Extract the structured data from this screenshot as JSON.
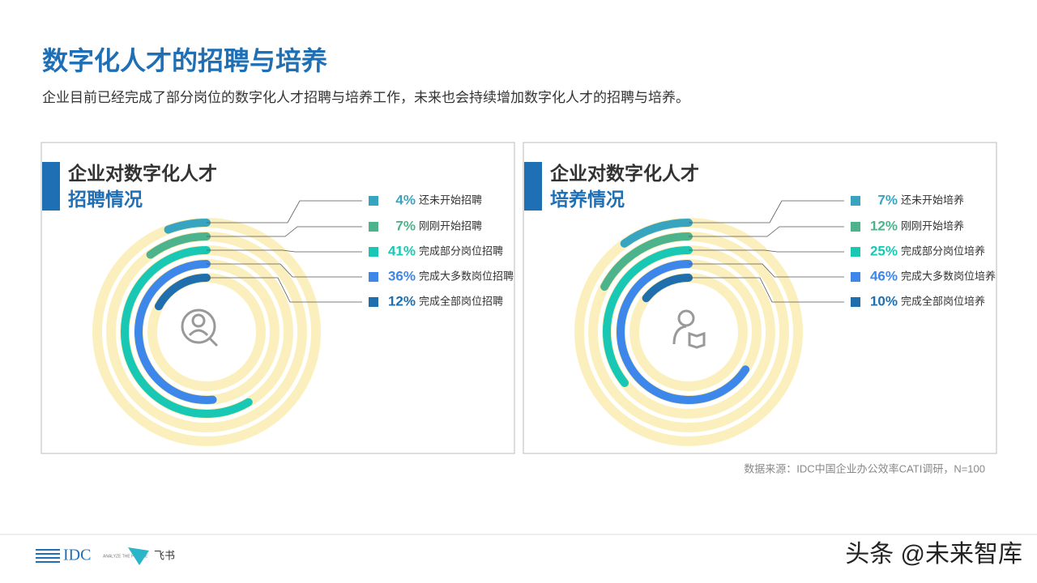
{
  "header": {
    "title": "数字化人才的招聘与培养",
    "subtitle": "企业目前已经完成了部分岗位的数字化人才招聘与培养工作，未来也会持续增加数字化人才的招聘与培养。"
  },
  "chart_data": [
    {
      "type": "radial-bar",
      "title_lines": [
        "企业对数字化人才",
        "招聘情况"
      ],
      "rlim": [
        0,
        70
      ],
      "categories": [
        "还未开始招聘",
        "刚刚开始招聘",
        "完成部分岗位招聘",
        "完成大多数岗位招聘",
        "完成全部岗位招聘"
      ],
      "values": [
        4,
        7,
        41,
        36,
        12
      ],
      "value_labels": [
        "4%",
        "7%",
        "41%",
        "36%",
        "12%"
      ],
      "colors": [
        "#37a5c0",
        "#4db38c",
        "#19c8b4",
        "#3d86ea",
        "#1f6fae"
      ],
      "track_color": "#fbf0bd"
    },
    {
      "type": "radial-bar",
      "title_lines": [
        "企业对数字化人才",
        "培养情况"
      ],
      "rlim": [
        0,
        70
      ],
      "categories": [
        "还未开始培养",
        "刚刚开始培养",
        "完成部分岗位培养",
        "完成大多数岗位培养",
        "完成全部岗位培养"
      ],
      "values": [
        7,
        12,
        25,
        46,
        10
      ],
      "value_labels": [
        "7%",
        "12%",
        "25%",
        "46%",
        "10%"
      ],
      "colors": [
        "#37a5c0",
        "#4db38c",
        "#19c8b4",
        "#3d86ea",
        "#1f6fae"
      ],
      "track_color": "#fbf0bd"
    }
  ],
  "source": "数据来源：IDC中国企业办公效率CATI调研，N=100",
  "footer": {
    "idc": "IDC",
    "tagline": "ANALYZE THE FUTURE",
    "feishu": "飞书",
    "watermark": "头条 @未来智库"
  }
}
